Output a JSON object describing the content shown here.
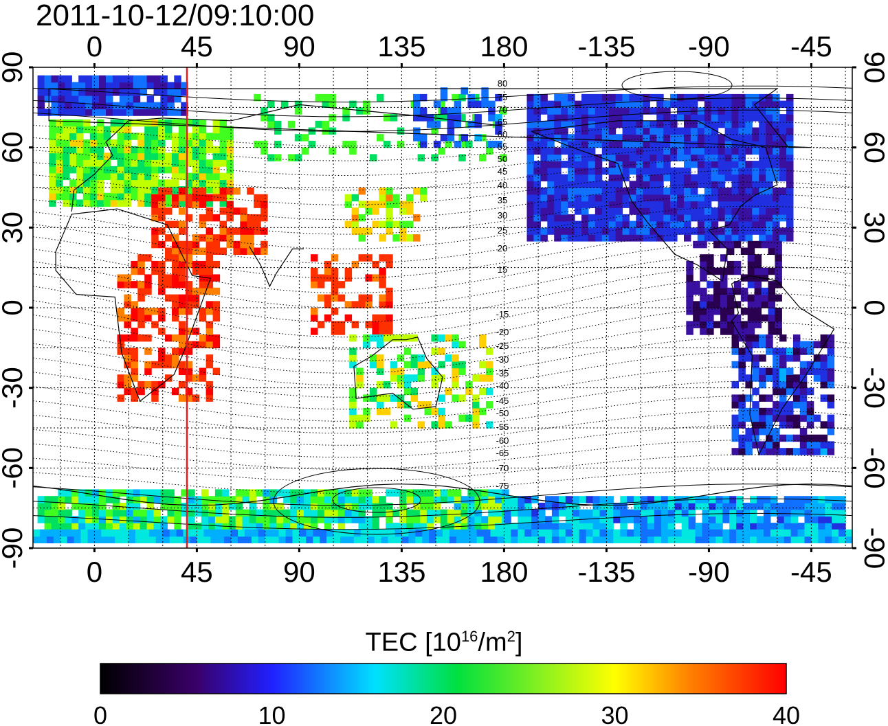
{
  "title": "2011-10-12/09:10:00",
  "map": {
    "top_axis_ticks": [
      "0",
      "45",
      "90",
      "135",
      "180",
      "-135",
      "-90",
      "-45"
    ],
    "bottom_axis_ticks": [
      "0",
      "45",
      "90",
      "135",
      "180",
      "-135",
      "-90",
      "-45"
    ],
    "left_axis_ticks": [
      "90",
      "60",
      "30",
      "0",
      "-30",
      "-60",
      "-90"
    ],
    "right_axis_ticks": [
      "90",
      "60",
      "30",
      "0",
      "-30",
      "-60",
      "-90"
    ],
    "contour_labels": [
      "80",
      "75",
      "70",
      "65",
      "60",
      "55",
      "50",
      "45",
      "40",
      "35",
      "30",
      "25",
      "20",
      "15",
      "-15",
      "-20",
      "-25",
      "-30",
      "-35",
      "-40",
      "-45",
      "-50",
      "-55",
      "-60",
      "-65",
      "-70",
      "-75"
    ],
    "marker_longitude": 45,
    "marker_color": "#e41a1c"
  },
  "colorbar": {
    "label_main": "TEC  [10",
    "label_sup1": "16",
    "label_mid": "/m",
    "label_sup2": "2",
    "label_end": "]",
    "ticks": [
      "0",
      "10",
      "20",
      "30",
      "40"
    ],
    "colormap": [
      "#000000",
      "#3a006a",
      "#2020ff",
      "#00e0ff",
      "#00e040",
      "#e0ff00",
      "#ff8000",
      "#ff0000"
    ]
  }
}
